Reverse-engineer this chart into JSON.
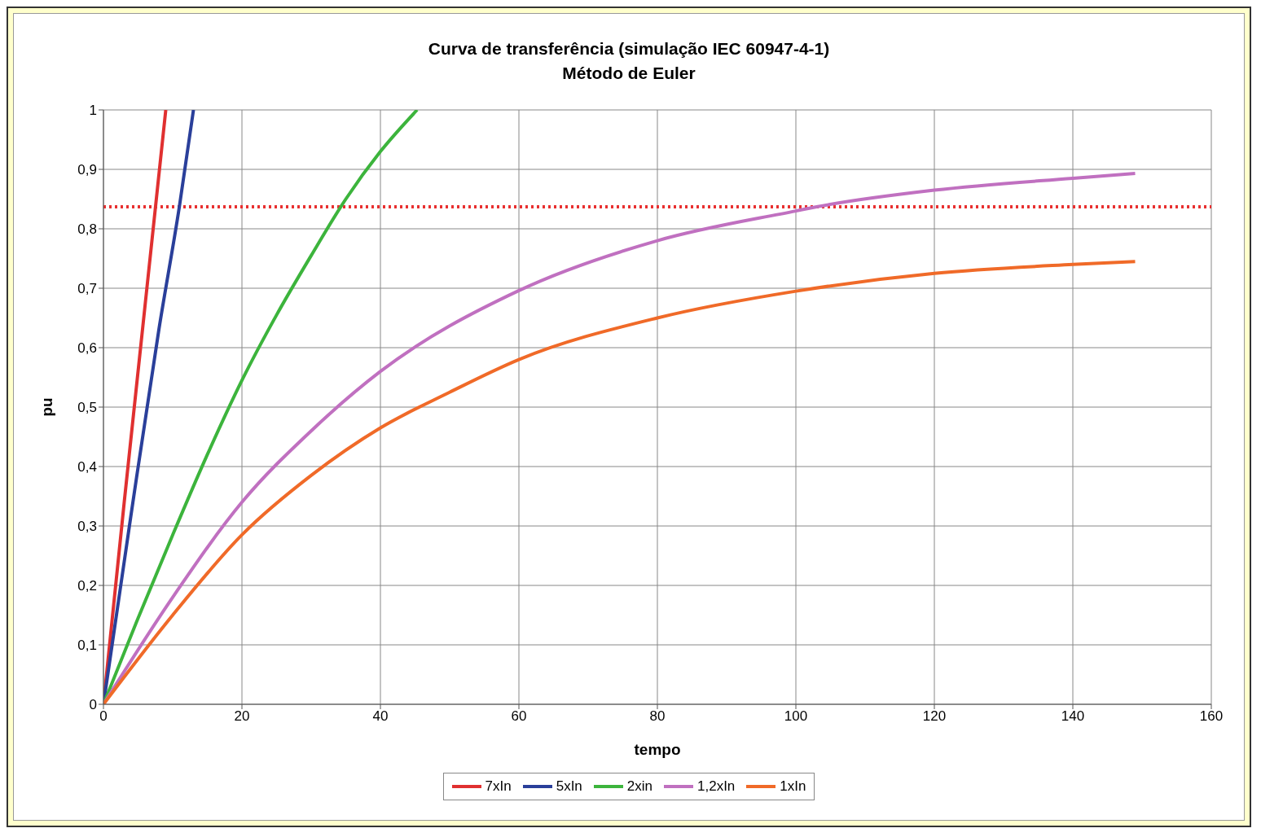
{
  "chart_data": {
    "type": "line",
    "title": "Curva de transferência (simulação IEC 60947-4-1)",
    "subtitle": "Método de Euler",
    "xlabel": "tempo",
    "ylabel": "pu",
    "xlim": [
      0,
      160
    ],
    "xticks": [
      0,
      20,
      40,
      60,
      80,
      100,
      120,
      140,
      160
    ],
    "ylim": [
      0,
      1
    ],
    "yticks": [
      0,
      {
        "value": 0.1,
        "label": "0,1"
      },
      {
        "value": 0.2,
        "label": "0,2"
      },
      {
        "value": 0.3,
        "label": "0,3"
      },
      {
        "value": 0.4,
        "label": "0,4"
      },
      {
        "value": 0.5,
        "label": "0,5"
      },
      {
        "value": 0.6,
        "label": "0,6"
      },
      {
        "value": 0.7,
        "label": "0,7"
      },
      {
        "value": 0.8,
        "label": "0,8"
      },
      {
        "value": 0.9,
        "label": "0,9"
      },
      1
    ],
    "grid": true,
    "legend": "bottom",
    "marker": "none",
    "line_style": "solid",
    "ref_lines": [
      {
        "axis": "y",
        "value": 0.837,
        "color": "#e83030",
        "line_style": "dotted"
      }
    ],
    "series": [
      {
        "name": "7xIn",
        "color": "#e03030",
        "x": [
          0,
          3,
          6,
          9
        ],
        "values": [
          0,
          0.34,
          0.67,
          1.0
        ]
      },
      {
        "name": "5xIn",
        "color": "#2a3f9a",
        "x": [
          0,
          4,
          8,
          11,
          13
        ],
        "values": [
          0,
          0.32,
          0.63,
          0.84,
          1.0
        ]
      },
      {
        "name": "2xin",
        "color": "#3cb43c",
        "x": [
          0,
          5,
          10,
          15,
          20,
          25,
          30,
          35,
          40,
          45.3
        ],
        "values": [
          0,
          0.145,
          0.285,
          0.42,
          0.545,
          0.655,
          0.755,
          0.85,
          0.93,
          1.0
        ]
      },
      {
        "name": "1,2xIn",
        "color": "#c070c0",
        "x": [
          0,
          10,
          20,
          30,
          40,
          60,
          80,
          100,
          103,
          120,
          140,
          149
        ],
        "values": [
          0,
          0.18,
          0.34,
          0.46,
          0.56,
          0.696,
          0.78,
          0.83,
          0.837,
          0.865,
          0.885,
          0.893
        ]
      },
      {
        "name": "1xIn",
        "color": "#f06a28",
        "x": [
          0,
          10,
          20,
          30,
          40,
          50,
          60,
          80,
          100,
          120,
          140,
          149
        ],
        "values": [
          0,
          0.15,
          0.285,
          0.385,
          0.465,
          0.525,
          0.58,
          0.65,
          0.695,
          0.725,
          0.74,
          0.745
        ]
      }
    ]
  }
}
